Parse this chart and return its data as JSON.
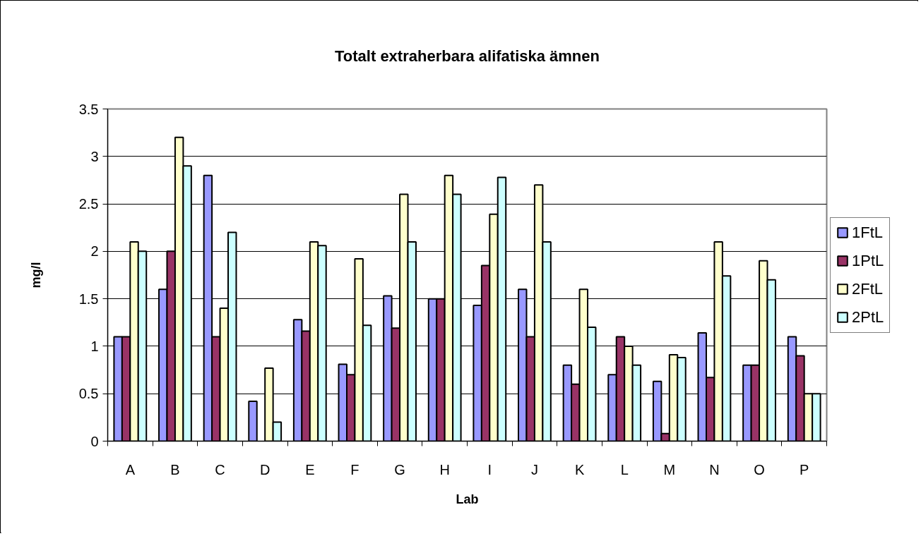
{
  "chart_data": {
    "type": "bar",
    "title": "Totalt extraherbara alifatiska ämnen",
    "xlabel": "Lab",
    "ylabel": "mg/l",
    "categories": [
      "A",
      "B",
      "C",
      "D",
      "E",
      "F",
      "G",
      "H",
      "I",
      "J",
      "K",
      "L",
      "M",
      "N",
      "O",
      "P"
    ],
    "series": [
      {
        "name": "1FtL",
        "color": "#9999ff",
        "values": [
          1.1,
          1.6,
          2.8,
          0.42,
          1.28,
          0.81,
          1.53,
          1.5,
          1.43,
          1.6,
          0.8,
          0.7,
          0.63,
          1.14,
          0.8,
          1.1
        ]
      },
      {
        "name": "1PtL",
        "color": "#993366",
        "values": [
          1.1,
          2.0,
          1.1,
          null,
          1.16,
          0.7,
          1.19,
          1.5,
          1.85,
          1.1,
          0.6,
          1.1,
          0.08,
          0.67,
          0.8,
          0.9
        ]
      },
      {
        "name": "2FtL",
        "color": "#ffffcc",
        "values": [
          2.1,
          3.2,
          1.4,
          0.77,
          2.1,
          1.92,
          2.6,
          2.8,
          2.39,
          2.7,
          1.6,
          1.0,
          0.91,
          2.1,
          1.9,
          0.5
        ]
      },
      {
        "name": "2PtL",
        "color": "#ccffff",
        "values": [
          2.0,
          2.9,
          2.2,
          0.2,
          2.06,
          1.22,
          2.1,
          2.6,
          2.78,
          2.1,
          1.2,
          0.8,
          0.88,
          1.74,
          1.7,
          0.5
        ]
      }
    ],
    "ylim": [
      0,
      3.5
    ],
    "yticks": [
      0,
      0.5,
      1,
      1.5,
      2,
      2.5,
      3,
      3.5
    ],
    "grid": "y",
    "legend": "right"
  }
}
